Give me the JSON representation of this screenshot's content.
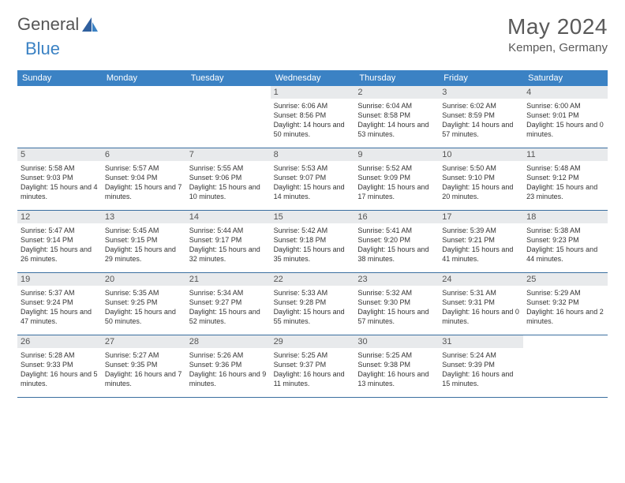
{
  "brand": {
    "part1": "General",
    "part2": "Blue"
  },
  "title": "May 2024",
  "location": "Kempen, Germany",
  "colors": {
    "header_bg": "#3b82c4",
    "date_bg": "#e8eaec",
    "border": "#3b6fa0",
    "text": "#333333",
    "title_text": "#5a5a5a"
  },
  "dayNames": [
    "Sunday",
    "Monday",
    "Tuesday",
    "Wednesday",
    "Thursday",
    "Friday",
    "Saturday"
  ],
  "weeks": [
    [
      null,
      null,
      null,
      {
        "d": "1",
        "sr": "6:06 AM",
        "ss": "8:56 PM",
        "dl": "14 hours and 50 minutes."
      },
      {
        "d": "2",
        "sr": "6:04 AM",
        "ss": "8:58 PM",
        "dl": "14 hours and 53 minutes."
      },
      {
        "d": "3",
        "sr": "6:02 AM",
        "ss": "8:59 PM",
        "dl": "14 hours and 57 minutes."
      },
      {
        "d": "4",
        "sr": "6:00 AM",
        "ss": "9:01 PM",
        "dl": "15 hours and 0 minutes."
      }
    ],
    [
      {
        "d": "5",
        "sr": "5:58 AM",
        "ss": "9:03 PM",
        "dl": "15 hours and 4 minutes."
      },
      {
        "d": "6",
        "sr": "5:57 AM",
        "ss": "9:04 PM",
        "dl": "15 hours and 7 minutes."
      },
      {
        "d": "7",
        "sr": "5:55 AM",
        "ss": "9:06 PM",
        "dl": "15 hours and 10 minutes."
      },
      {
        "d": "8",
        "sr": "5:53 AM",
        "ss": "9:07 PM",
        "dl": "15 hours and 14 minutes."
      },
      {
        "d": "9",
        "sr": "5:52 AM",
        "ss": "9:09 PM",
        "dl": "15 hours and 17 minutes."
      },
      {
        "d": "10",
        "sr": "5:50 AM",
        "ss": "9:10 PM",
        "dl": "15 hours and 20 minutes."
      },
      {
        "d": "11",
        "sr": "5:48 AM",
        "ss": "9:12 PM",
        "dl": "15 hours and 23 minutes."
      }
    ],
    [
      {
        "d": "12",
        "sr": "5:47 AM",
        "ss": "9:14 PM",
        "dl": "15 hours and 26 minutes."
      },
      {
        "d": "13",
        "sr": "5:45 AM",
        "ss": "9:15 PM",
        "dl": "15 hours and 29 minutes."
      },
      {
        "d": "14",
        "sr": "5:44 AM",
        "ss": "9:17 PM",
        "dl": "15 hours and 32 minutes."
      },
      {
        "d": "15",
        "sr": "5:42 AM",
        "ss": "9:18 PM",
        "dl": "15 hours and 35 minutes."
      },
      {
        "d": "16",
        "sr": "5:41 AM",
        "ss": "9:20 PM",
        "dl": "15 hours and 38 minutes."
      },
      {
        "d": "17",
        "sr": "5:39 AM",
        "ss": "9:21 PM",
        "dl": "15 hours and 41 minutes."
      },
      {
        "d": "18",
        "sr": "5:38 AM",
        "ss": "9:23 PM",
        "dl": "15 hours and 44 minutes."
      }
    ],
    [
      {
        "d": "19",
        "sr": "5:37 AM",
        "ss": "9:24 PM",
        "dl": "15 hours and 47 minutes."
      },
      {
        "d": "20",
        "sr": "5:35 AM",
        "ss": "9:25 PM",
        "dl": "15 hours and 50 minutes."
      },
      {
        "d": "21",
        "sr": "5:34 AM",
        "ss": "9:27 PM",
        "dl": "15 hours and 52 minutes."
      },
      {
        "d": "22",
        "sr": "5:33 AM",
        "ss": "9:28 PM",
        "dl": "15 hours and 55 minutes."
      },
      {
        "d": "23",
        "sr": "5:32 AM",
        "ss": "9:30 PM",
        "dl": "15 hours and 57 minutes."
      },
      {
        "d": "24",
        "sr": "5:31 AM",
        "ss": "9:31 PM",
        "dl": "16 hours and 0 minutes."
      },
      {
        "d": "25",
        "sr": "5:29 AM",
        "ss": "9:32 PM",
        "dl": "16 hours and 2 minutes."
      }
    ],
    [
      {
        "d": "26",
        "sr": "5:28 AM",
        "ss": "9:33 PM",
        "dl": "16 hours and 5 minutes."
      },
      {
        "d": "27",
        "sr": "5:27 AM",
        "ss": "9:35 PM",
        "dl": "16 hours and 7 minutes."
      },
      {
        "d": "28",
        "sr": "5:26 AM",
        "ss": "9:36 PM",
        "dl": "16 hours and 9 minutes."
      },
      {
        "d": "29",
        "sr": "5:25 AM",
        "ss": "9:37 PM",
        "dl": "16 hours and 11 minutes."
      },
      {
        "d": "30",
        "sr": "5:25 AM",
        "ss": "9:38 PM",
        "dl": "16 hours and 13 minutes."
      },
      {
        "d": "31",
        "sr": "5:24 AM",
        "ss": "9:39 PM",
        "dl": "16 hours and 15 minutes."
      },
      null
    ]
  ],
  "labels": {
    "sunrise": "Sunrise:",
    "sunset": "Sunset:",
    "daylight": "Daylight:"
  }
}
